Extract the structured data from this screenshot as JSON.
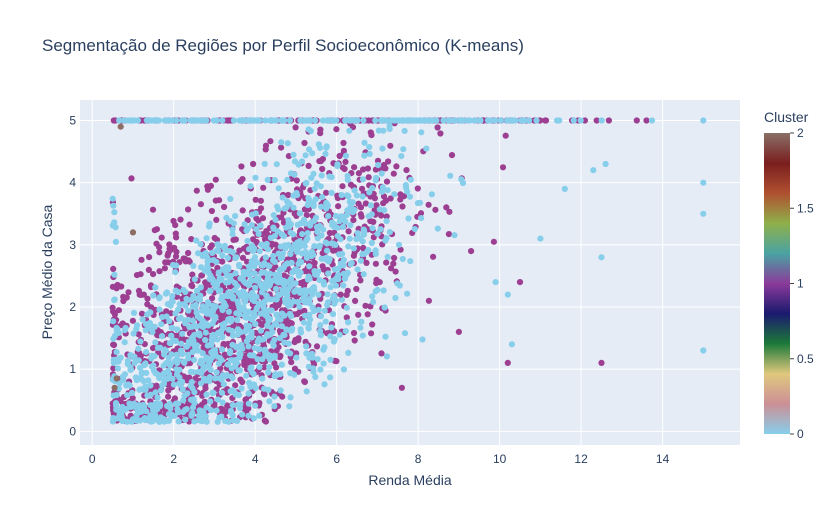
{
  "chart_data": {
    "type": "scatter",
    "title": "Segmentação de Regiões por Perfil Socioeconômico (K-means)",
    "xlabel": "Renda Média",
    "ylabel": "Preço Médio da Casa",
    "xlim": [
      -0.3,
      15.9
    ],
    "ylim": [
      -0.22,
      5.33
    ],
    "x_ticks": [
      "0",
      "2",
      "4",
      "6",
      "8",
      "10",
      "12",
      "14"
    ],
    "y_ticks": [
      "0",
      "1",
      "2",
      "3",
      "4",
      "5"
    ],
    "grid": true,
    "colorbar": {
      "title": "Cluster",
      "range": [
        0,
        2
      ],
      "ticks": [
        "0",
        "0.5",
        "1",
        "1.5",
        "2"
      ],
      "colorscale": [
        "#87ceeb",
        "#cc8f96",
        "#e0c87e",
        "#1d7a3a",
        "#1a1a6e",
        "#8b3a9a",
        "#4aa3a3",
        "#8fb04a",
        "#b05030",
        "#7a1e1e",
        "#8a7068"
      ]
    },
    "clusters": [
      {
        "value": 0,
        "color": "#87ceeb"
      },
      {
        "value": 1,
        "color": "#9c3e91"
      },
      {
        "value": 2,
        "color": "#8c6e64"
      }
    ],
    "notable_points": [
      {
        "x": 15.0,
        "y": 5.0,
        "cluster": 0
      },
      {
        "x": 15.0,
        "y": 4.0,
        "cluster": 0
      },
      {
        "x": 15.0,
        "y": 3.5,
        "cluster": 0
      },
      {
        "x": 15.0,
        "y": 1.3,
        "cluster": 0
      },
      {
        "x": 12.5,
        "y": 2.8,
        "cluster": 0
      },
      {
        "x": 12.5,
        "y": 1.1,
        "cluster": 1
      },
      {
        "x": 12.6,
        "y": 4.3,
        "cluster": 0
      },
      {
        "x": 12.3,
        "y": 4.2,
        "cluster": 0
      },
      {
        "x": 11.6,
        "y": 3.9,
        "cluster": 0
      },
      {
        "x": 11.0,
        "y": 3.1,
        "cluster": 0
      },
      {
        "x": 10.5,
        "y": 2.4,
        "cluster": 1
      },
      {
        "x": 10.3,
        "y": 1.4,
        "cluster": 0
      },
      {
        "x": 10.2,
        "y": 1.1,
        "cluster": 1
      },
      {
        "x": 10.2,
        "y": 2.2,
        "cluster": 0
      },
      {
        "x": 9.9,
        "y": 2.4,
        "cluster": 0
      },
      {
        "x": 9.3,
        "y": 2.9,
        "cluster": 1
      },
      {
        "x": 9.0,
        "y": 1.6,
        "cluster": 1
      },
      {
        "x": 7.6,
        "y": 0.7,
        "cluster": 1
      },
      {
        "x": 6.1,
        "y": 2.2,
        "cluster": 1
      }
    ]
  }
}
